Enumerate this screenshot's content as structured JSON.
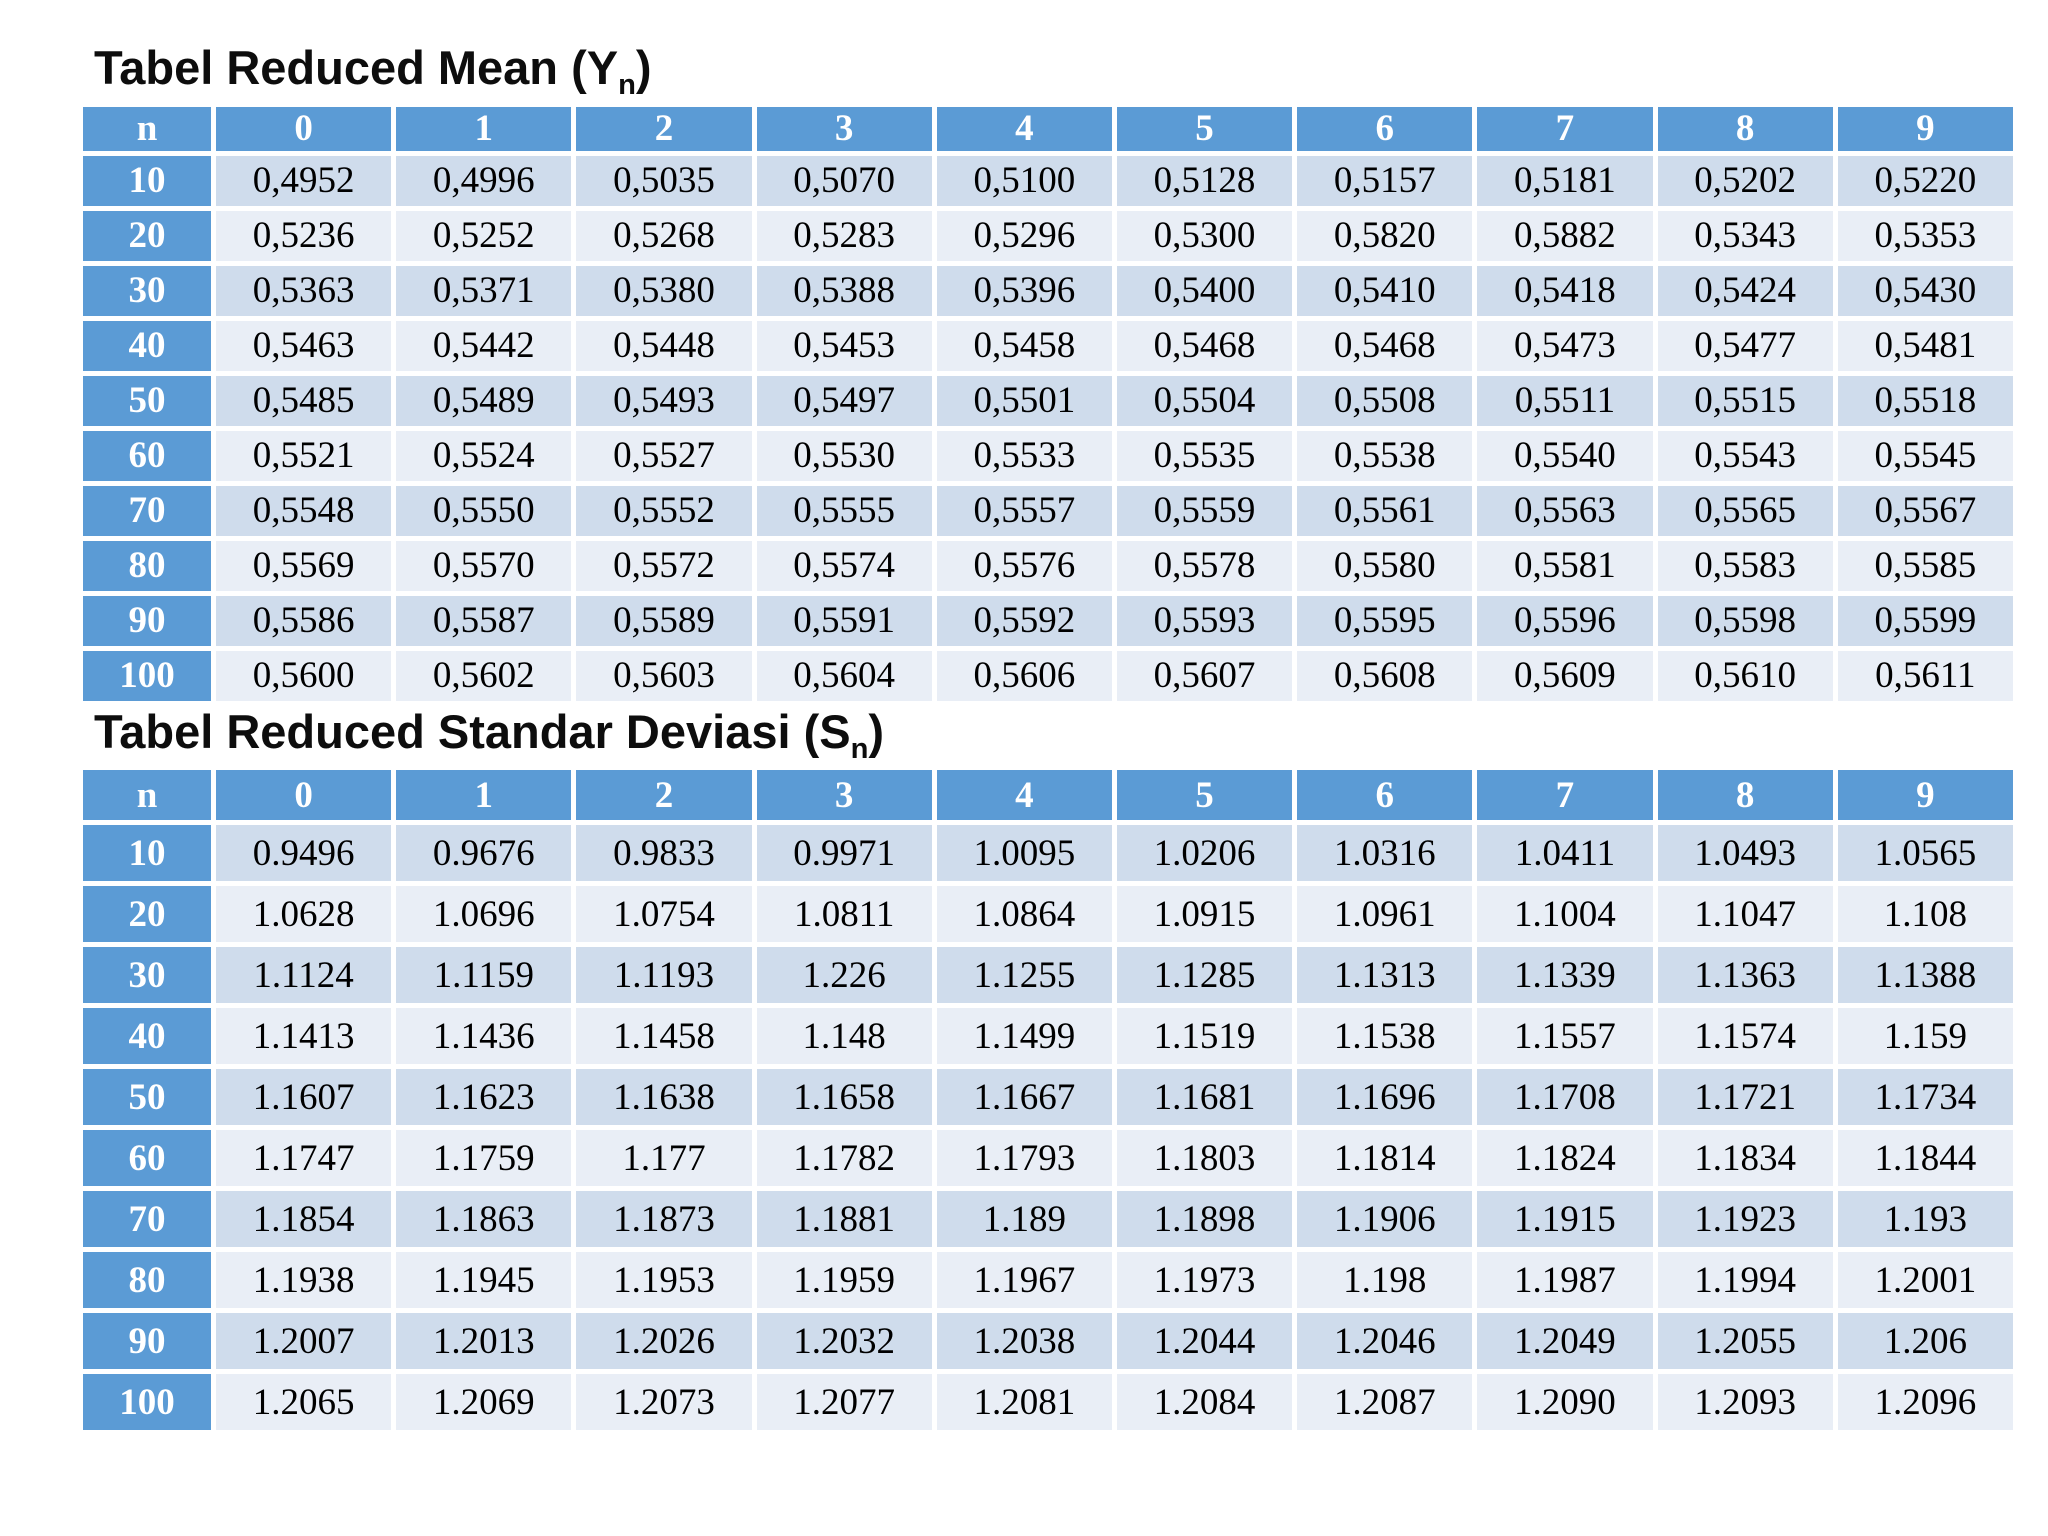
{
  "colors": {
    "header_bg": "#5b9bd5",
    "header_text": "#ffffff",
    "row_dark": "#cfdcec",
    "row_light": "#e9eef6",
    "cell_text": "#000000",
    "page_bg": "#ffffff"
  },
  "table1": {
    "title": {
      "text": "Tabel Reduced Mean (Y",
      "sub": "n",
      "close": ")"
    },
    "col_headers": [
      "n",
      "0",
      "1",
      "2",
      "3",
      "4",
      "5",
      "6",
      "7",
      "8",
      "9"
    ],
    "rows": [
      {
        "n": "10",
        "values": [
          "0,4952",
          "0,4996",
          "0,5035",
          "0,5070",
          "0,5100",
          "0,5128",
          "0,5157",
          "0,5181",
          "0,5202",
          "0,5220"
        ]
      },
      {
        "n": "20",
        "values": [
          "0,5236",
          "0,5252",
          "0,5268",
          "0,5283",
          "0,5296",
          "0,5300",
          "0,5820",
          "0,5882",
          "0,5343",
          "0,5353"
        ]
      },
      {
        "n": "30",
        "values": [
          "0,5363",
          "0,5371",
          "0,5380",
          "0,5388",
          "0,5396",
          "0,5400",
          "0,5410",
          "0,5418",
          "0,5424",
          "0,5430"
        ]
      },
      {
        "n": "40",
        "values": [
          "0,5463",
          "0,5442",
          "0,5448",
          "0,5453",
          "0,5458",
          "0,5468",
          "0,5468",
          "0,5473",
          "0,5477",
          "0,5481"
        ]
      },
      {
        "n": "50",
        "values": [
          "0,5485",
          "0,5489",
          "0,5493",
          "0,5497",
          "0,5501",
          "0,5504",
          "0,5508",
          "0,5511",
          "0,5515",
          "0,5518"
        ]
      },
      {
        "n": "60",
        "values": [
          "0,5521",
          "0,5524",
          "0,5527",
          "0,5530",
          "0,5533",
          "0,5535",
          "0,5538",
          "0,5540",
          "0,5543",
          "0,5545"
        ]
      },
      {
        "n": "70",
        "values": [
          "0,5548",
          "0,5550",
          "0,5552",
          "0,5555",
          "0,5557",
          "0,5559",
          "0,5561",
          "0,5563",
          "0,5565",
          "0,5567"
        ]
      },
      {
        "n": "80",
        "values": [
          "0,5569",
          "0,5570",
          "0,5572",
          "0,5574",
          "0,5576",
          "0,5578",
          "0,5580",
          "0,5581",
          "0,5583",
          "0,5585"
        ]
      },
      {
        "n": "90",
        "values": [
          "0,5586",
          "0,5587",
          "0,5589",
          "0,5591",
          "0,5592",
          "0,5593",
          "0,5595",
          "0,5596",
          "0,5598",
          "0,5599"
        ]
      },
      {
        "n": "100",
        "values": [
          "0,5600",
          "0,5602",
          "0,5603",
          "0,5604",
          "0,5606",
          "0,5607",
          "0,5608",
          "0,5609",
          "0,5610",
          "0,5611"
        ]
      }
    ]
  },
  "table2": {
    "title": {
      "text": "Tabel Reduced Standar Deviasi (S",
      "sub": "n",
      "close": ")"
    },
    "col_headers": [
      "n",
      "0",
      "1",
      "2",
      "3",
      "4",
      "5",
      "6",
      "7",
      "8",
      "9"
    ],
    "rows": [
      {
        "n": "10",
        "values": [
          "0.9496",
          "0.9676",
          "0.9833",
          "0.9971",
          "1.0095",
          "1.0206",
          "1.0316",
          "1.0411",
          "1.0493",
          "1.0565"
        ]
      },
      {
        "n": "20",
        "values": [
          "1.0628",
          "1.0696",
          "1.0754",
          "1.0811",
          "1.0864",
          "1.0915",
          "1.0961",
          "1.1004",
          "1.1047",
          "1.108"
        ]
      },
      {
        "n": "30",
        "values": [
          "1.1124",
          "1.1159",
          "1.1193",
          "1.226",
          "1.1255",
          "1.1285",
          "1.1313",
          "1.1339",
          "1.1363",
          "1.1388"
        ]
      },
      {
        "n": "40",
        "values": [
          "1.1413",
          "1.1436",
          "1.1458",
          "1.148",
          "1.1499",
          "1.1519",
          "1.1538",
          "1.1557",
          "1.1574",
          "1.159"
        ]
      },
      {
        "n": "50",
        "values": [
          "1.1607",
          "1.1623",
          "1.1638",
          "1.1658",
          "1.1667",
          "1.1681",
          "1.1696",
          "1.1708",
          "1.1721",
          "1.1734"
        ]
      },
      {
        "n": "60",
        "values": [
          "1.1747",
          "1.1759",
          "1.177",
          "1.1782",
          "1.1793",
          "1.1803",
          "1.1814",
          "1.1824",
          "1.1834",
          "1.1844"
        ]
      },
      {
        "n": "70",
        "values": [
          "1.1854",
          "1.1863",
          "1.1873",
          "1.1881",
          "1.189",
          "1.1898",
          "1.1906",
          "1.1915",
          "1.1923",
          "1.193"
        ]
      },
      {
        "n": "80",
        "values": [
          "1.1938",
          "1.1945",
          "1.1953",
          "1.1959",
          "1.1967",
          "1.1973",
          "1.198",
          "1.1987",
          "1.1994",
          "1.2001"
        ]
      },
      {
        "n": "90",
        "values": [
          "1.2007",
          "1.2013",
          "1.2026",
          "1.2032",
          "1.2038",
          "1.2044",
          "1.2046",
          "1.2049",
          "1.2055",
          "1.206"
        ]
      },
      {
        "n": "100",
        "values": [
          "1.2065",
          "1.2069",
          "1.2073",
          "1.2077",
          "1.2081",
          "1.2084",
          "1.2087",
          "1.2090",
          "1.2093",
          "1.2096"
        ]
      }
    ]
  }
}
